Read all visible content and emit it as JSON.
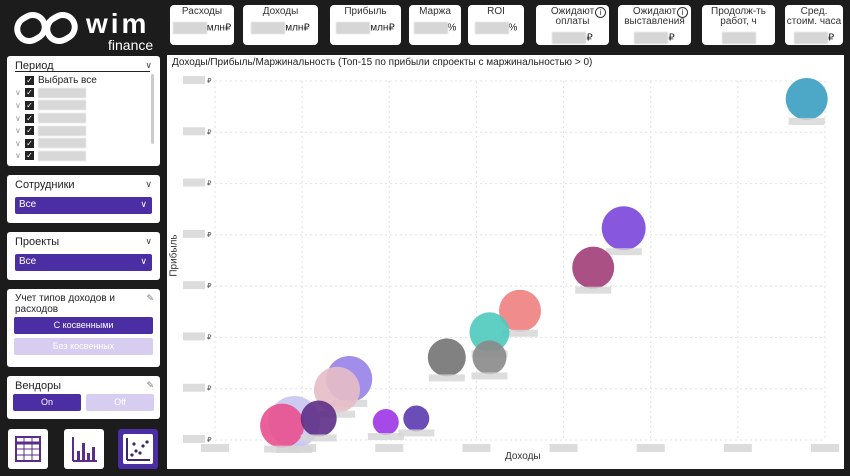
{
  "brand": {
    "name": "wim",
    "sub": "finance"
  },
  "kpis": [
    {
      "label": "Расходы",
      "unit": "млн₽",
      "info": false
    },
    {
      "label": "Доходы",
      "unit": "млн₽",
      "info": false
    },
    {
      "label": "Прибыль",
      "unit": "млн₽",
      "info": false
    },
    {
      "label": "Маржа",
      "unit": "%",
      "info": false
    },
    {
      "label": "ROI",
      "unit": "%",
      "info": false
    },
    {
      "label": "Ожидают оплаты",
      "unit": "₽",
      "info": true
    },
    {
      "label": "Ожидают выставления",
      "unit": "₽",
      "info": true
    },
    {
      "label": "Продолж-ть работ, ч",
      "unit": "",
      "info": false
    },
    {
      "label": "Сред. стоим. часа",
      "unit": "₽",
      "info": false
    }
  ],
  "filters": {
    "period": {
      "title": "Период",
      "select_all": "Выбрать все",
      "rows": 6
    },
    "employees": {
      "title": "Сотрудники",
      "value": "Все"
    },
    "projects": {
      "title": "Проекты",
      "value": "Все"
    },
    "income_types": {
      "title": "Учет типов доходов и расходов",
      "opt_with": "С косвенными",
      "opt_without": "Без косвенных"
    },
    "vendors": {
      "title": "Вендоры",
      "on": "On",
      "off": "Off"
    }
  },
  "nav": [
    {
      "icon": "table-icon",
      "active": false
    },
    {
      "icon": "bar-chart-icon",
      "active": false
    },
    {
      "icon": "scatter-chart-icon",
      "active": true
    }
  ],
  "chart_data": {
    "type": "scatter",
    "title": "Доходы/Прибыль/Маржинальность (Топ-15 по прибыли спроекты с маржинальностью > 0)",
    "xlabel": "Доходы",
    "ylabel": "Прибыль",
    "xlim": [
      0,
      100
    ],
    "ylim": [
      0,
      100
    ],
    "points": [
      {
        "x": 97,
        "y": 95,
        "r": 21,
        "color": "#3a9fc1"
      },
      {
        "x": 67,
        "y": 59,
        "r": 22,
        "color": "#7a45d9"
      },
      {
        "x": 62,
        "y": 48,
        "r": 21,
        "color": "#a13d77"
      },
      {
        "x": 50,
        "y": 36,
        "r": 21,
        "color": "#f08080"
      },
      {
        "x": 45,
        "y": 30,
        "r": 20,
        "color": "#4ec9bd"
      },
      {
        "x": 38,
        "y": 23,
        "r": 19,
        "color": "#737373"
      },
      {
        "x": 45,
        "y": 23,
        "r": 17,
        "color": "#8a8a8a"
      },
      {
        "x": 22,
        "y": 17,
        "r": 23,
        "color": "#9781e8"
      },
      {
        "x": 20,
        "y": 14,
        "r": 23,
        "color": "#e6bcc6"
      },
      {
        "x": 13,
        "y": 5,
        "r": 26,
        "color": "#c9c5f2"
      },
      {
        "x": 11,
        "y": 4,
        "r": 22,
        "color": "#e8508f"
      },
      {
        "x": 17,
        "y": 6,
        "r": 18,
        "color": "#5e2d86"
      },
      {
        "x": 28,
        "y": 5,
        "r": 13,
        "color": "#9d35e6"
      },
      {
        "x": 33,
        "y": 6,
        "r": 13,
        "color": "#5a3aae"
      }
    ]
  }
}
